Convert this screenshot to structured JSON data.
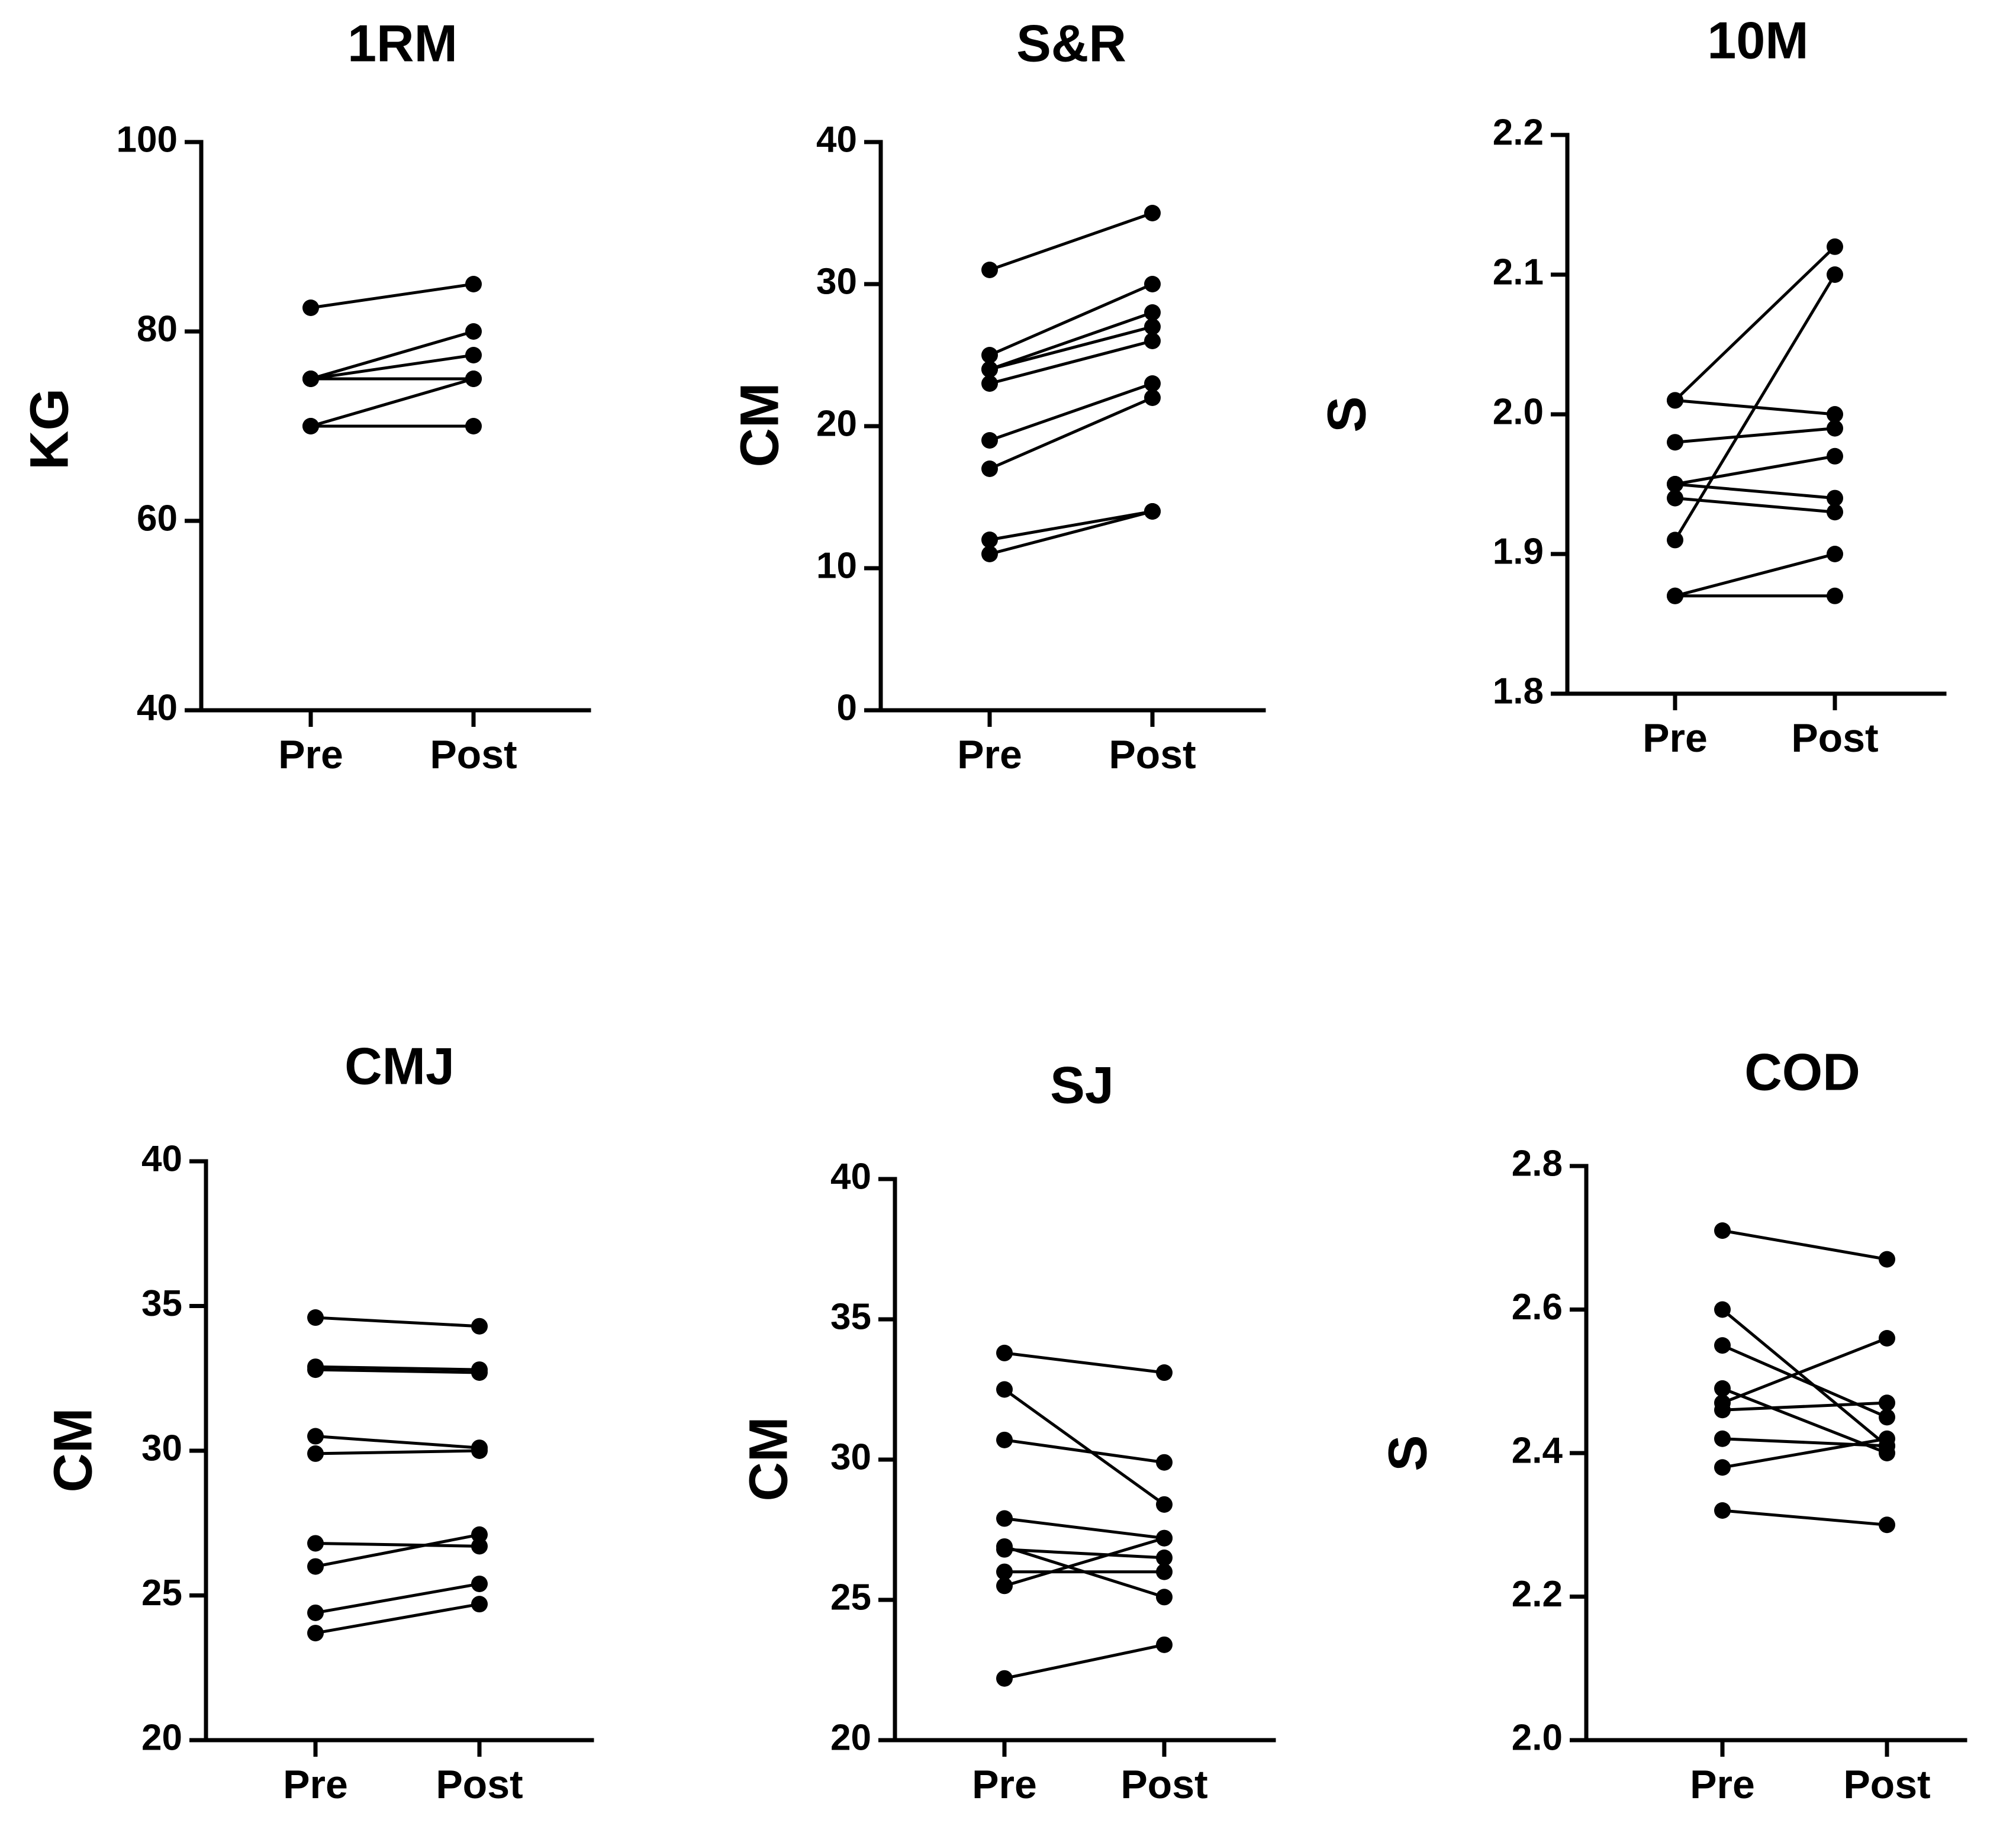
{
  "chart_data": [
    {
      "type": "line",
      "title": "1RM",
      "ylabel": "KG",
      "categories": [
        "Pre",
        "Post"
      ],
      "ylim": [
        40,
        100
      ],
      "yticks": [
        40,
        60,
        80,
        100
      ],
      "ytick_labels": [
        "40",
        "60",
        "80",
        "100"
      ],
      "series": [
        {
          "values": [
            82.5,
            85
          ]
        },
        {
          "values": [
            75,
            80
          ]
        },
        {
          "values": [
            75,
            77.5
          ]
        },
        {
          "values": [
            75,
            75
          ]
        },
        {
          "values": [
            70,
            75
          ]
        },
        {
          "values": [
            70,
            70
          ]
        }
      ]
    },
    {
      "type": "line",
      "title": "S&R",
      "ylabel": "CM",
      "categories": [
        "Pre",
        "Post"
      ],
      "ylim": [
        0,
        40
      ],
      "yticks": [
        0,
        10,
        20,
        30,
        40
      ],
      "ytick_labels": [
        "0",
        "10",
        "20",
        "30",
        "40"
      ],
      "series": [
        {
          "values": [
            31,
            35
          ]
        },
        {
          "values": [
            25,
            30
          ]
        },
        {
          "values": [
            24,
            28
          ]
        },
        {
          "values": [
            24,
            27
          ]
        },
        {
          "values": [
            23,
            26
          ]
        },
        {
          "values": [
            19,
            23
          ]
        },
        {
          "values": [
            17,
            22
          ]
        },
        {
          "values": [
            12,
            14
          ]
        },
        {
          "values": [
            11,
            14
          ]
        }
      ]
    },
    {
      "type": "line",
      "title": "10M",
      "ylabel": "S",
      "categories": [
        "Pre",
        "Post"
      ],
      "ylim": [
        1.8,
        2.2
      ],
      "yticks": [
        1.8,
        1.9,
        2.0,
        2.1,
        2.2
      ],
      "ytick_labels": [
        "1.8",
        "1.9",
        "2.0",
        "2.1",
        "2.2"
      ],
      "series": [
        {
          "values": [
            2.01,
            2.12
          ]
        },
        {
          "values": [
            2.01,
            2.0
          ]
        },
        {
          "values": [
            1.98,
            1.99
          ]
        },
        {
          "values": [
            1.95,
            1.97
          ]
        },
        {
          "values": [
            1.95,
            1.94
          ]
        },
        {
          "values": [
            1.94,
            1.93
          ]
        },
        {
          "values": [
            1.91,
            2.1
          ]
        },
        {
          "values": [
            1.87,
            1.9
          ]
        },
        {
          "values": [
            1.87,
            1.87
          ]
        }
      ]
    },
    {
      "type": "line",
      "title": "CMJ",
      "ylabel": "CM",
      "categories": [
        "Pre",
        "Post"
      ],
      "ylim": [
        20,
        40
      ],
      "yticks": [
        20,
        25,
        30,
        35,
        40
      ],
      "ytick_labels": [
        "20",
        "25",
        "30",
        "35",
        "40"
      ],
      "series": [
        {
          "values": [
            34.6,
            34.3
          ]
        },
        {
          "values": [
            32.9,
            32.8
          ]
        },
        {
          "values": [
            32.8,
            32.7
          ]
        },
        {
          "values": [
            30.5,
            30.1
          ]
        },
        {
          "values": [
            29.9,
            30.0
          ]
        },
        {
          "values": [
            26.8,
            26.7
          ]
        },
        {
          "values": [
            26.0,
            27.1
          ]
        },
        {
          "values": [
            24.4,
            25.4
          ]
        },
        {
          "values": [
            23.7,
            24.7
          ]
        }
      ]
    },
    {
      "type": "line",
      "title": "SJ",
      "ylabel": "CM",
      "categories": [
        "Pre",
        "Post"
      ],
      "ylim": [
        20,
        40
      ],
      "yticks": [
        20,
        25,
        30,
        35,
        40
      ],
      "ytick_labels": [
        "20",
        "25",
        "30",
        "35",
        "40"
      ],
      "series": [
        {
          "values": [
            33.8,
            33.1
          ]
        },
        {
          "values": [
            32.5,
            28.4
          ]
        },
        {
          "values": [
            30.7,
            29.9
          ]
        },
        {
          "values": [
            27.9,
            27.2
          ]
        },
        {
          "values": [
            26.9,
            25.1
          ]
        },
        {
          "values": [
            26.8,
            26.5
          ]
        },
        {
          "values": [
            26.0,
            26.0
          ]
        },
        {
          "values": [
            25.5,
            27.2
          ]
        },
        {
          "values": [
            22.2,
            23.4
          ]
        }
      ]
    },
    {
      "type": "line",
      "title": "COD",
      "ylabel": "S",
      "categories": [
        "Pre",
        "Post"
      ],
      "ylim": [
        2.0,
        2.8
      ],
      "yticks": [
        2.0,
        2.2,
        2.4,
        2.6,
        2.8
      ],
      "ytick_labels": [
        "2.0",
        "2.2",
        "2.4",
        "2.6",
        "2.8"
      ],
      "series": [
        {
          "values": [
            2.71,
            2.67
          ]
        },
        {
          "values": [
            2.6,
            2.41
          ]
        },
        {
          "values": [
            2.55,
            2.45
          ]
        },
        {
          "values": [
            2.49,
            2.4
          ]
        },
        {
          "values": [
            2.47,
            2.56
          ]
        },
        {
          "values": [
            2.46,
            2.47
          ]
        },
        {
          "values": [
            2.42,
            2.41
          ]
        },
        {
          "values": [
            2.38,
            2.42
          ]
        },
        {
          "values": [
            2.32,
            2.3
          ]
        }
      ]
    }
  ]
}
